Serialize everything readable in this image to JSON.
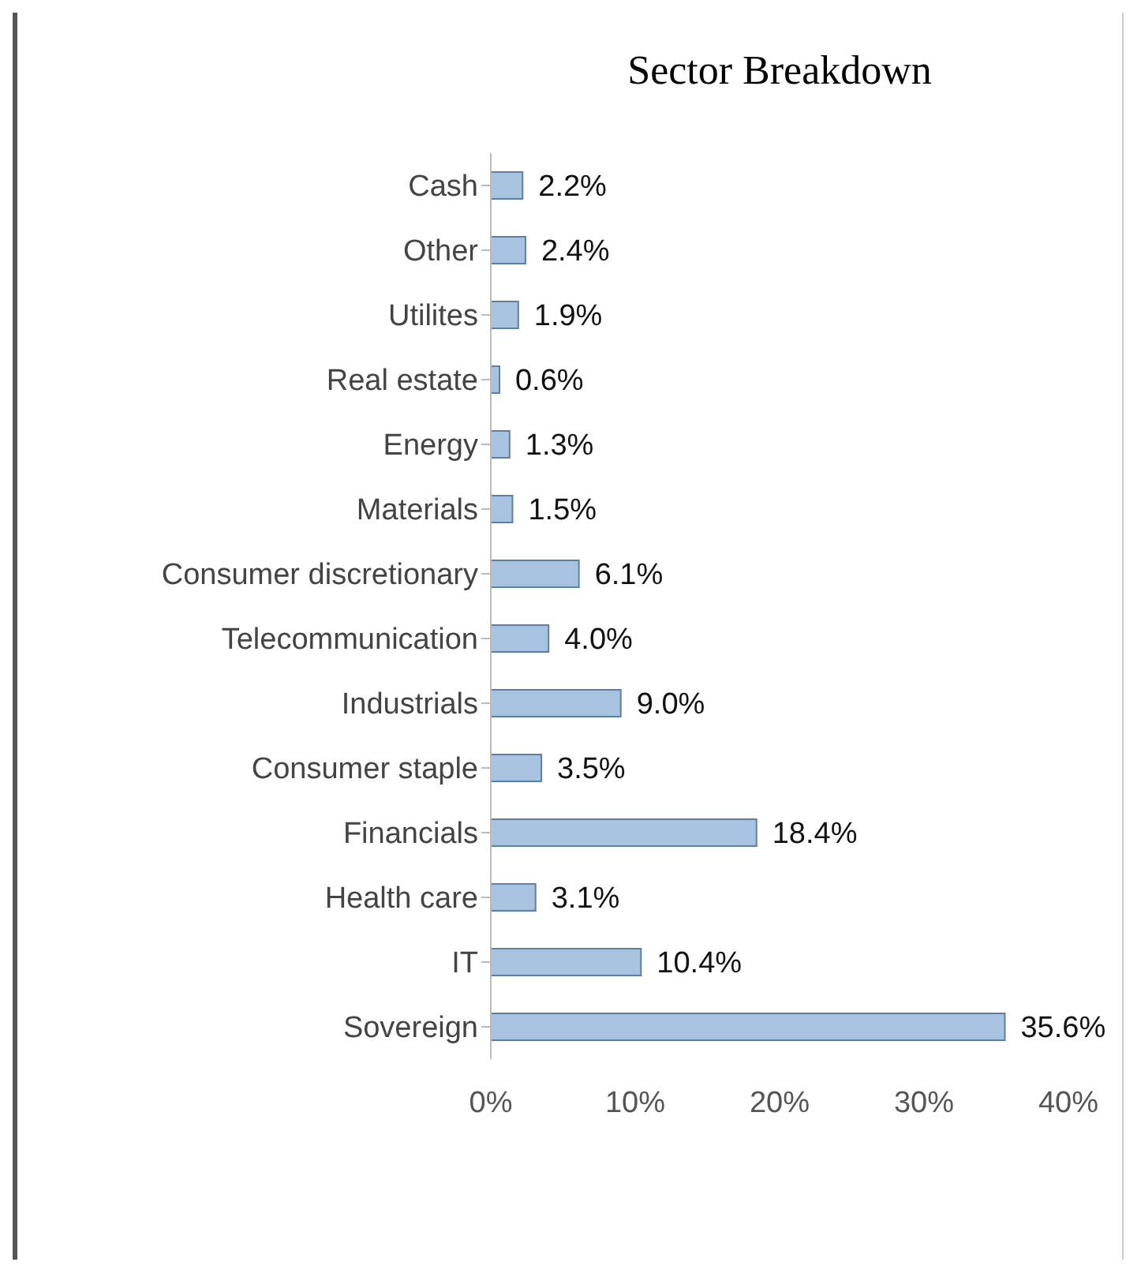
{
  "chart_data": {
    "type": "bar",
    "orientation": "horizontal",
    "title": "Sector Breakdown",
    "categories": [
      "Cash",
      "Other",
      "Utilites",
      "Real estate",
      "Energy",
      "Materials",
      "Consumer discretionary",
      "Telecommunication",
      "Industrials",
      "Consumer staple",
      "Financials",
      "Health care",
      "IT",
      "Sovereign"
    ],
    "values": [
      2.2,
      2.4,
      1.9,
      0.6,
      1.3,
      1.5,
      6.1,
      4.0,
      9.0,
      3.5,
      18.4,
      3.1,
      10.4,
      35.6
    ],
    "value_labels": [
      "2.2%",
      "2.4%",
      "1.9%",
      "0.6%",
      "1.3%",
      "1.5%",
      "6.1%",
      "4.0%",
      "9.0%",
      "3.5%",
      "18.4%",
      "3.1%",
      "10.4%",
      "35.6%"
    ],
    "color": "#a7c3e0",
    "xlim": [
      0,
      40
    ],
    "xticks": [
      {
        "value": 0,
        "label": "0%"
      },
      {
        "value": 10,
        "label": "10%"
      },
      {
        "value": 20,
        "label": "20%"
      },
      {
        "value": 30,
        "label": "30%"
      },
      {
        "value": 40,
        "label": "40%"
      }
    ],
    "grid": false,
    "legend": false
  }
}
